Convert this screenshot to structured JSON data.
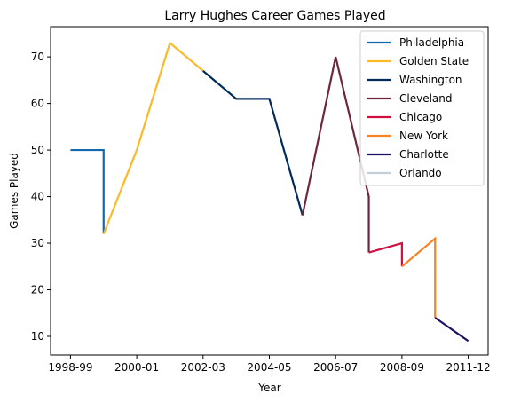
{
  "chart_data": {
    "type": "line",
    "title": "Larry Hughes Career Games Played",
    "xlabel": "Year",
    "ylabel": "Games Played",
    "x_ticks": [
      "1998-99",
      "2000-01",
      "2002-03",
      "2004-05",
      "2006-07",
      "2008-09",
      "2011-12"
    ],
    "x_tick_index": [
      0,
      2,
      4,
      6,
      8,
      10,
      12
    ],
    "y_ticks": [
      10,
      20,
      30,
      40,
      50,
      60,
      70
    ],
    "xlim": [
      -0.6,
      12.6
    ],
    "ylim": [
      6,
      76.5
    ],
    "grid": false,
    "legend_position": "top-right",
    "series": [
      {
        "name": "Philadelphia",
        "color": "#1368b0",
        "points": [
          [
            0,
            50
          ],
          [
            1,
            50
          ],
          [
            1,
            32
          ]
        ]
      },
      {
        "name": "Golden State",
        "color": "#fdb927",
        "points": [
          [
            1,
            32
          ],
          [
            2,
            50
          ],
          [
            3,
            73
          ],
          [
            4,
            67
          ]
        ]
      },
      {
        "name": "Washington",
        "color": "#002b5c",
        "points": [
          [
            4,
            67
          ],
          [
            5,
            61
          ],
          [
            6,
            61
          ],
          [
            7,
            36
          ]
        ]
      },
      {
        "name": "Cleveland",
        "color": "#6f263d",
        "points": [
          [
            7,
            36
          ],
          [
            8,
            70
          ],
          [
            9,
            40
          ],
          [
            9,
            28
          ]
        ]
      },
      {
        "name": "Chicago",
        "color": "#ce1141",
        "points": [
          [
            9,
            28
          ],
          [
            10,
            30
          ],
          [
            10,
            25
          ]
        ]
      },
      {
        "name": "New York",
        "color": "#f58426",
        "points": [
          [
            10,
            25
          ],
          [
            11,
            31
          ],
          [
            11,
            14
          ]
        ]
      },
      {
        "name": "Charlotte",
        "color": "#1d1160",
        "points": [
          [
            11,
            14
          ],
          [
            12,
            9
          ]
        ]
      },
      {
        "name": "Orlando",
        "color": "#c4ced4",
        "points": []
      }
    ]
  }
}
